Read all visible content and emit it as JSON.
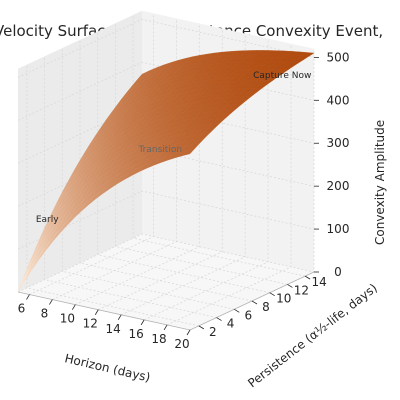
{
  "chart_data": {
    "type": "surface",
    "title": "Velocity Surface (High-Persistence Convexity Event,",
    "xlabel": "Horizon (days)",
    "ylabel": "Persistence (α½-life, days)",
    "zlabel": "Convexity Amplitude",
    "x_ticks": [
      6,
      8,
      10,
      12,
      14,
      16,
      18,
      20
    ],
    "y_ticks": [
      2,
      4,
      6,
      8,
      10,
      12,
      14
    ],
    "z_ticks": [
      0,
      100,
      200,
      300,
      400,
      500
    ],
    "xlim": [
      5,
      20
    ],
    "ylim": [
      1,
      15
    ],
    "zlim": [
      0,
      520
    ],
    "grid": true,
    "colormap": "oranges",
    "surface_color_low": "#fff0e0",
    "surface_color_high": "#b04a0e",
    "pane_color": "#f2f2f2",
    "surface_z_min": 0,
    "surface_z_max": 510,
    "annotations": [
      {
        "text": "Capture Now",
        "x": 18,
        "y": 14,
        "z": 450,
        "color": "#262626"
      },
      {
        "text": "Transition",
        "x": 12,
        "y": 8,
        "z": 300,
        "color": "#666666"
      },
      {
        "text": "Early",
        "x": 6,
        "y": 3,
        "z": 150,
        "color": "#262626"
      }
    ]
  }
}
